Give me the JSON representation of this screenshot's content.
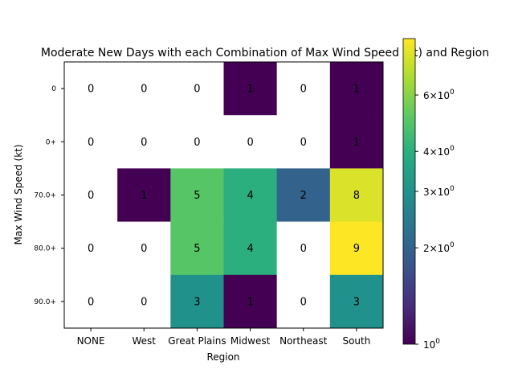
{
  "chart_data": {
    "type": "heatmap",
    "title": "Moderate New Days with each Combination of Max Wind Speed (kt) and Region",
    "xlabel": "Region",
    "ylabel": "Max Wind Speed (kt)",
    "x_categories": [
      "NONE",
      "West",
      "Great Plains",
      "Midwest",
      "Northeast",
      "South"
    ],
    "y_categories": [
      "0",
      "0+",
      "70.0+",
      "80.0+",
      "90.0+"
    ],
    "values": [
      [
        0,
        0,
        0,
        1,
        0,
        1
      ],
      [
        0,
        0,
        0,
        0,
        0,
        1
      ],
      [
        0,
        1,
        5,
        4,
        2,
        8
      ],
      [
        0,
        0,
        5,
        4,
        0,
        9
      ],
      [
        0,
        0,
        3,
        1,
        0,
        3
      ]
    ],
    "color_scale": "log",
    "colormap": "viridis",
    "zero_color": "#ffffff",
    "colorbar": {
      "range": [
        1,
        9
      ],
      "tick_labels": [
        {
          "value": 1,
          "base": "10",
          "exp": "0"
        },
        {
          "value": 2,
          "base": "2×10",
          "exp": "0"
        },
        {
          "value": 3,
          "base": "3×10",
          "exp": "0"
        },
        {
          "value": 4,
          "base": "4×10",
          "exp": "0"
        },
        {
          "value": 6,
          "base": "6×10",
          "exp": "0"
        }
      ]
    }
  }
}
